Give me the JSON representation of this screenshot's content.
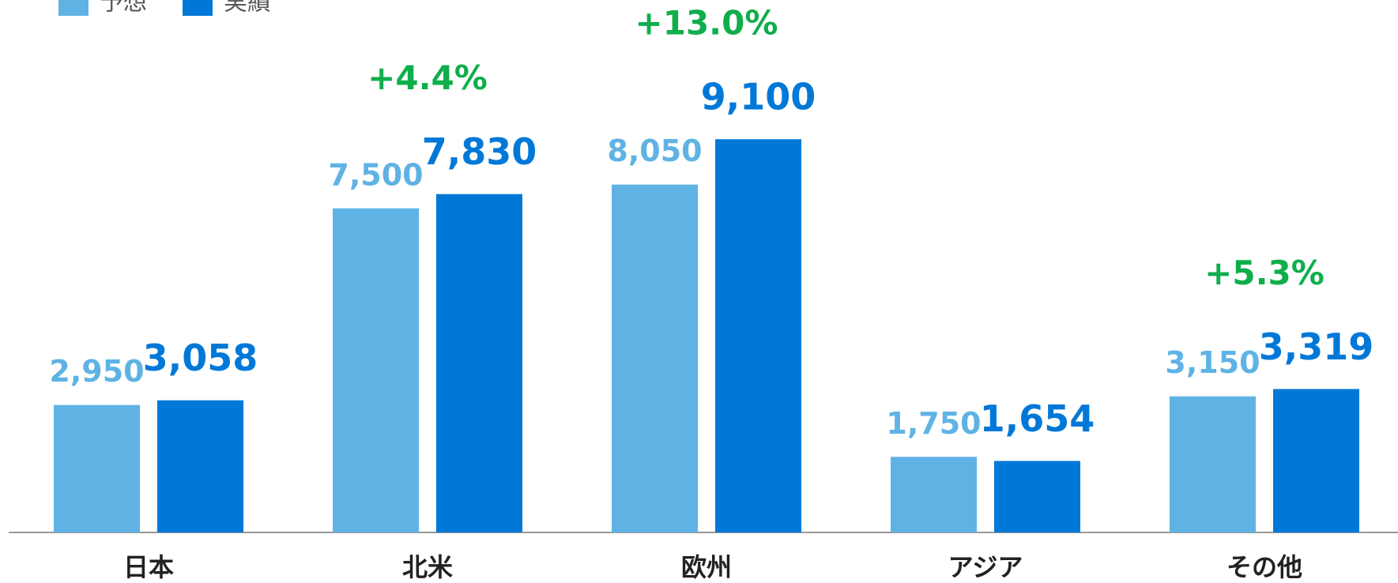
{
  "chart_data": {
    "type": "bar",
    "categories": [
      "日本",
      "北米",
      "欧州",
      "アジア",
      "その他"
    ],
    "series": [
      {
        "name": "予想",
        "color": "#5fb3e4",
        "values": [
          2950,
          7500,
          8050,
          1750,
          3150
        ],
        "value_labels": [
          "2,950",
          "7,500",
          "8,050",
          "1,750",
          "3,150"
        ]
      },
      {
        "name": "実績",
        "color": "#0078d7",
        "values": [
          3058,
          7830,
          9100,
          1654,
          3319
        ],
        "value_labels": [
          "3,058",
          "7,830",
          "9,100",
          "1,654",
          "3,319"
        ]
      }
    ],
    "annotations": [
      {
        "category": "北米",
        "text": "+4.4%"
      },
      {
        "category": "欧州",
        "text": "+13.0%"
      },
      {
        "category": "その他",
        "text": "+5.3%"
      }
    ],
    "annotation_color": "#0fae4b"
  }
}
